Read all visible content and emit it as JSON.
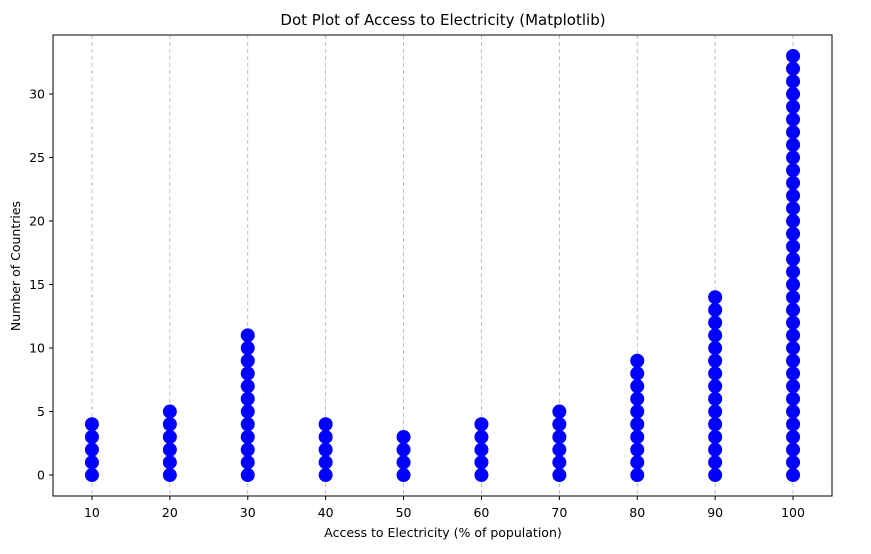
{
  "chart_data": {
    "type": "scatter",
    "title": "Dot Plot of Access to Electricity (Matplotlib)",
    "xlabel": "Access to Electricity (% of population)",
    "ylabel": "Number of Countries",
    "categories": [
      10,
      20,
      30,
      40,
      50,
      60,
      70,
      80,
      90,
      100
    ],
    "counts": [
      5,
      6,
      12,
      5,
      4,
      5,
      6,
      10,
      15,
      34
    ],
    "note_counts": "each category has dots stacked from y=0 up to y=count-1",
    "x_ticks": [
      "10",
      "20",
      "30",
      "40",
      "50",
      "60",
      "70",
      "80",
      "90",
      "100"
    ],
    "y_ticks": [
      "0",
      "5",
      "10",
      "15",
      "20",
      "25",
      "30"
    ],
    "xlim": [
      5,
      105
    ],
    "ylim": [
      -1.65,
      34.65
    ],
    "grid": "vertical dashed at x ticks",
    "marker_color": "#0000ff",
    "grid_color": "#b0b0b0"
  }
}
